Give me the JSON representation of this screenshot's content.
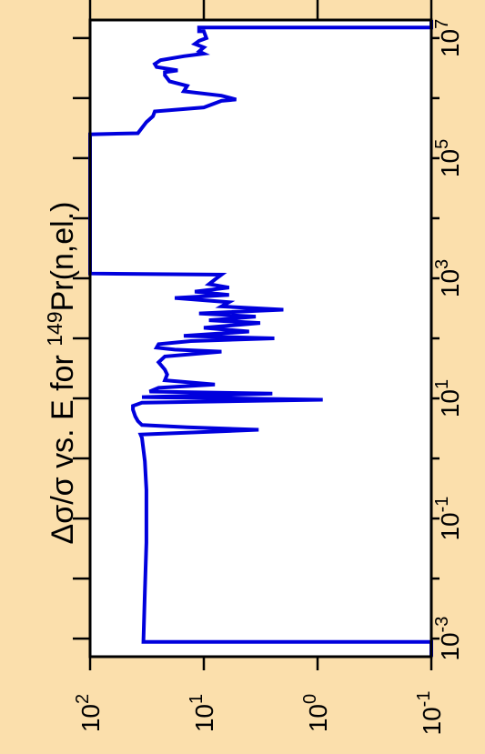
{
  "background_color": "#fbdfac",
  "plot_background_color": "#ffffff",
  "chart_data": {
    "type": "line",
    "orientation": "rotated-90-ccw",
    "title": {
      "prefix": "Δσ/σ vs. E for ",
      "superscript": "149",
      "suffix": "Pr(n,el.)"
    },
    "x_axis": {
      "quantity": "E",
      "scale": "log",
      "range": [
        0.0005,
        20000000
      ],
      "major_ticks": [
        0.001,
        0.01,
        0.1,
        1,
        10,
        100,
        1000,
        10000,
        100000,
        1000000,
        10000000
      ],
      "tick_labels": [
        {
          "value": 0.001,
          "base": "10",
          "exp": "-3"
        },
        {
          "value": 0.1,
          "base": "10",
          "exp": "-1"
        },
        {
          "value": 10,
          "base": "10",
          "exp": "1"
        },
        {
          "value": 1000,
          "base": "10",
          "exp": "3"
        },
        {
          "value": 100000,
          "base": "10",
          "exp": "5"
        },
        {
          "value": 10000000,
          "base": "10",
          "exp": "7"
        }
      ]
    },
    "y_axis": {
      "quantity": "Δσ/σ",
      "scale": "log",
      "range": [
        100,
        0.1
      ],
      "major_ticks": [
        100,
        10,
        1,
        0.1
      ],
      "tick_labels": [
        {
          "value": 100,
          "base": "10",
          "exp": "2"
        },
        {
          "value": 10,
          "base": "10",
          "exp": "1"
        },
        {
          "value": 1,
          "base": "10",
          "exp": "0"
        },
        {
          "value": 0.1,
          "base": "10",
          "exp": "-1"
        }
      ]
    },
    "series": [
      {
        "color": "#0000dd",
        "points": [
          [
            0.0005,
            0.1
          ],
          [
            0.00088,
            0.1
          ],
          [
            0.00088,
            34
          ],
          [
            0.006,
            33
          ],
          [
            0.04,
            32
          ],
          [
            0.3,
            32
          ],
          [
            0.9,
            33
          ],
          [
            2.2,
            35
          ],
          [
            2.5,
            36
          ],
          [
            3.0,
            3.3
          ],
          [
            3.3,
            14
          ],
          [
            3.6,
            35
          ],
          [
            4.2,
            38
          ],
          [
            5.0,
            40
          ],
          [
            6.5,
            42
          ],
          [
            7.5,
            42
          ],
          [
            8.5,
            35
          ],
          [
            9.5,
            0.9
          ],
          [
            10.5,
            35
          ],
          [
            12,
            2.5
          ],
          [
            13,
            30
          ],
          [
            15,
            25
          ],
          [
            17,
            8
          ],
          [
            20,
            22
          ],
          [
            25,
            21
          ],
          [
            30,
            22
          ],
          [
            40,
            25
          ],
          [
            50,
            22
          ],
          [
            60,
            7
          ],
          [
            65,
            18
          ],
          [
            70,
            26
          ],
          [
            80,
            25
          ],
          [
            90,
            13
          ],
          [
            100,
            2.4
          ],
          [
            110,
            15
          ],
          [
            130,
            4
          ],
          [
            150,
            10
          ],
          [
            180,
            3.2
          ],
          [
            200,
            9
          ],
          [
            230,
            3.5
          ],
          [
            260,
            11
          ],
          [
            300,
            2.0
          ],
          [
            340,
            7
          ],
          [
            400,
            6
          ],
          [
            470,
            18
          ],
          [
            530,
            6
          ],
          [
            600,
            12
          ],
          [
            700,
            6
          ],
          [
            800,
            9
          ],
          [
            950,
            8
          ],
          [
            1150,
            7
          ],
          [
            1200,
            100
          ],
          [
            250000,
            100
          ],
          [
            260000,
            38
          ],
          [
            400000,
            32
          ],
          [
            500000,
            28
          ],
          [
            600000,
            27
          ],
          [
            700000,
            10
          ],
          [
            900000,
            7
          ],
          [
            950000,
            5.2
          ],
          [
            1100000,
            7
          ],
          [
            1300000,
            15
          ],
          [
            1600000,
            14
          ],
          [
            1900000,
            20
          ],
          [
            2400000,
            22
          ],
          [
            2700000,
            22
          ],
          [
            2900000,
            17
          ],
          [
            3300000,
            26
          ],
          [
            3700000,
            27
          ],
          [
            4300000,
            24
          ],
          [
            5000000,
            15
          ],
          [
            5500000,
            10
          ],
          [
            6000000,
            11
          ],
          [
            7000000,
            10
          ],
          [
            8000000,
            12
          ],
          [
            9000000,
            11
          ],
          [
            10000000,
            9.5
          ],
          [
            13000000,
            10
          ],
          [
            13000000,
            11
          ],
          [
            15000000,
            11
          ],
          [
            15000000,
            0.1
          ],
          [
            20000000,
            0.1
          ]
        ]
      }
    ]
  }
}
